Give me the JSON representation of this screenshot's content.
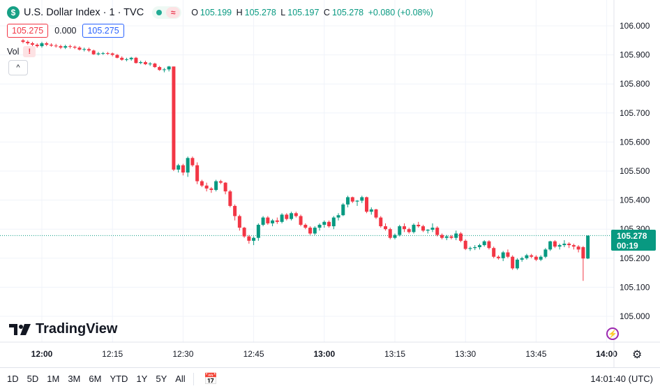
{
  "header": {
    "symbol_icon": "$",
    "title": "U.S. Dollar Index · 1 · TVC",
    "delay_icon": "≈",
    "ohlc": {
      "o_label": "O",
      "o": "105.199",
      "h_label": "H",
      "h": "105.278",
      "l_label": "L",
      "l": "105.197",
      "c_label": "C",
      "c": "105.278",
      "change": "+0.080 (+0.08%)"
    }
  },
  "quote": {
    "bid": "105.275",
    "spread": "0.000",
    "ask": "105.275"
  },
  "volume": {
    "label": "Vol",
    "warn": "!"
  },
  "collapse_icon": "^",
  "logo": "TradingView",
  "price_tag": {
    "price": "105.278",
    "countdown": "00:19"
  },
  "bottom": {
    "ranges": [
      "1D",
      "5D",
      "1M",
      "3M",
      "6M",
      "YTD",
      "1Y",
      "5Y",
      "All"
    ],
    "clock": "14:01:40 (UTC)"
  },
  "colors": {
    "up": "#089981",
    "down": "#f23645",
    "grid": "#f0f3fa"
  },
  "chart_data": {
    "type": "candlestick",
    "y_ticks": [
      "106.000",
      "105.900",
      "105.800",
      "105.700",
      "105.600",
      "105.500",
      "105.400",
      "105.300",
      "105.200",
      "105.100",
      "105.000"
    ],
    "ylim": [
      104.97,
      106.04
    ],
    "x_ticks": [
      "12:00",
      "12:15",
      "12:30",
      "12:45",
      "13:00",
      "13:15",
      "13:30",
      "13:45",
      "14:00"
    ],
    "start_minute": 716,
    "candles": [
      [
        105.95,
        105.955,
        105.94,
        105.945
      ],
      [
        105.945,
        105.95,
        105.935,
        105.94
      ],
      [
        105.94,
        105.945,
        105.93,
        105.935
      ],
      [
        105.935,
        105.94,
        105.925,
        105.93
      ],
      [
        105.93,
        105.945,
        105.925,
        105.94
      ],
      [
        105.94,
        105.945,
        105.93,
        105.935
      ],
      [
        105.935,
        105.94,
        105.928,
        105.932
      ],
      [
        105.932,
        105.938,
        105.925,
        105.93
      ],
      [
        105.93,
        105.935,
        105.92,
        105.925
      ],
      [
        105.925,
        105.935,
        105.92,
        105.93
      ],
      [
        105.93,
        105.935,
        105.922,
        105.928
      ],
      [
        105.928,
        105.932,
        105.92,
        105.925
      ],
      [
        105.925,
        105.93,
        105.915,
        105.918
      ],
      [
        105.918,
        105.925,
        105.912,
        105.92
      ],
      [
        105.92,
        105.925,
        105.91,
        105.915
      ],
      [
        105.915,
        105.918,
        105.9,
        105.902
      ],
      [
        105.902,
        105.91,
        105.898,
        105.905
      ],
      [
        105.905,
        105.91,
        105.9,
        105.906
      ],
      [
        105.906,
        105.91,
        105.9,
        105.905
      ],
      [
        105.905,
        105.908,
        105.895,
        105.9
      ],
      [
        105.9,
        105.903,
        105.888,
        105.89
      ],
      [
        105.89,
        105.895,
        105.88,
        105.883
      ],
      [
        105.883,
        105.89,
        105.878,
        105.885
      ],
      [
        105.885,
        105.893,
        105.88,
        105.89
      ],
      [
        105.89,
        105.893,
        105.87,
        105.872
      ],
      [
        105.872,
        105.88,
        105.868,
        105.875
      ],
      [
        105.875,
        105.88,
        105.865,
        105.868
      ],
      [
        105.868,
        105.875,
        105.862,
        105.87
      ],
      [
        105.87,
        105.873,
        105.855,
        105.858
      ],
      [
        105.858,
        105.862,
        105.845,
        105.848
      ],
      [
        105.848,
        105.855,
        105.84,
        105.85
      ],
      [
        105.85,
        105.862,
        105.843,
        105.86
      ],
      [
        105.86,
        105.86,
        105.5,
        105.505
      ],
      [
        105.505,
        105.525,
        105.495,
        105.52
      ],
      [
        105.52,
        105.525,
        105.485,
        105.495
      ],
      [
        105.495,
        105.55,
        105.48,
        105.545
      ],
      [
        105.545,
        105.55,
        105.515,
        105.52
      ],
      [
        105.52,
        105.53,
        105.455,
        105.465
      ],
      [
        105.465,
        105.47,
        105.445,
        105.45
      ],
      [
        105.45,
        105.46,
        105.43,
        105.44
      ],
      [
        105.44,
        105.445,
        105.425,
        105.435
      ],
      [
        105.435,
        105.47,
        105.43,
        105.465
      ],
      [
        105.465,
        105.47,
        105.455,
        105.46
      ],
      [
        105.46,
        105.462,
        105.42,
        105.43
      ],
      [
        105.43,
        105.435,
        105.375,
        105.38
      ],
      [
        105.38,
        105.385,
        105.33,
        105.345
      ],
      [
        105.345,
        105.35,
        105.295,
        105.305
      ],
      [
        105.305,
        105.308,
        105.27,
        105.275
      ],
      [
        105.275,
        105.28,
        105.25,
        105.26
      ],
      [
        105.26,
        105.275,
        105.245,
        105.27
      ],
      [
        105.27,
        105.32,
        105.26,
        105.315
      ],
      [
        105.315,
        105.345,
        105.31,
        105.34
      ],
      [
        105.34,
        105.345,
        105.315,
        105.32
      ],
      [
        105.32,
        105.335,
        105.31,
        105.33
      ],
      [
        105.33,
        105.34,
        105.318,
        105.325
      ],
      [
        105.325,
        105.355,
        105.32,
        105.35
      ],
      [
        105.35,
        105.355,
        105.33,
        105.335
      ],
      [
        105.335,
        105.36,
        105.33,
        105.355
      ],
      [
        105.355,
        105.36,
        105.34,
        105.345
      ],
      [
        105.345,
        105.35,
        105.31,
        105.315
      ],
      [
        105.315,
        105.32,
        105.3,
        105.305
      ],
      [
        105.305,
        105.31,
        105.28,
        105.285
      ],
      [
        105.285,
        105.31,
        105.28,
        105.305
      ],
      [
        105.305,
        105.32,
        105.295,
        105.315
      ],
      [
        105.315,
        105.33,
        105.305,
        105.325
      ],
      [
        105.325,
        105.33,
        105.305,
        105.31
      ],
      [
        105.31,
        105.345,
        105.3,
        105.34
      ],
      [
        105.34,
        105.355,
        105.33,
        105.348
      ],
      [
        105.348,
        105.39,
        105.345,
        105.385
      ],
      [
        105.385,
        105.415,
        105.375,
        105.41
      ],
      [
        105.41,
        105.412,
        105.39,
        105.395
      ],
      [
        105.395,
        105.4,
        105.38,
        105.398
      ],
      [
        105.398,
        105.415,
        105.39,
        105.41
      ],
      [
        105.41,
        105.412,
        105.355,
        105.36
      ],
      [
        105.36,
        105.375,
        105.35,
        105.368
      ],
      [
        105.368,
        105.37,
        105.335,
        105.34
      ],
      [
        105.34,
        105.345,
        105.305,
        105.31
      ],
      [
        105.31,
        105.32,
        105.295,
        105.3
      ],
      [
        105.3,
        105.305,
        105.265,
        105.27
      ],
      [
        105.27,
        105.285,
        105.265,
        105.28
      ],
      [
        105.28,
        105.315,
        105.275,
        105.31
      ],
      [
        105.31,
        105.32,
        105.29,
        105.3
      ],
      [
        105.3,
        105.305,
        105.285,
        105.29
      ],
      [
        105.29,
        105.32,
        105.285,
        105.315
      ],
      [
        105.315,
        105.325,
        105.305,
        105.31
      ],
      [
        105.31,
        105.315,
        105.29,
        105.295
      ],
      [
        105.295,
        105.3,
        105.285,
        105.298
      ],
      [
        105.298,
        105.32,
        105.29,
        105.305
      ],
      [
        105.305,
        105.31,
        105.275,
        105.28
      ],
      [
        105.28,
        105.285,
        105.265,
        105.27
      ],
      [
        105.27,
        105.28,
        105.262,
        105.275
      ],
      [
        105.275,
        105.28,
        105.265,
        105.27
      ],
      [
        105.27,
        105.295,
        105.262,
        105.285
      ],
      [
        105.285,
        105.29,
        105.255,
        105.26
      ],
      [
        105.26,
        105.265,
        105.228,
        105.232
      ],
      [
        105.232,
        105.24,
        105.225,
        105.235
      ],
      [
        105.235,
        105.245,
        105.228,
        105.238
      ],
      [
        105.238,
        105.25,
        105.23,
        105.245
      ],
      [
        105.245,
        105.262,
        105.24,
        105.258
      ],
      [
        105.258,
        105.262,
        105.23,
        105.235
      ],
      [
        105.235,
        105.24,
        105.2,
        105.205
      ],
      [
        105.205,
        105.21,
        105.195,
        105.2
      ],
      [
        105.2,
        105.225,
        105.19,
        105.22
      ],
      [
        105.22,
        105.23,
        105.2,
        105.205
      ],
      [
        105.205,
        105.21,
        105.16,
        105.165
      ],
      [
        105.165,
        105.2,
        105.16,
        105.195
      ],
      [
        105.195,
        105.205,
        105.188,
        105.2
      ],
      [
        105.2,
        105.215,
        105.195,
        105.21
      ],
      [
        105.21,
        105.215,
        105.2,
        105.205
      ],
      [
        105.205,
        105.21,
        105.19,
        105.195
      ],
      [
        105.195,
        105.21,
        105.19,
        105.205
      ],
      [
        105.205,
        105.235,
        105.2,
        105.23
      ],
      [
        105.23,
        105.26,
        105.225,
        105.258
      ],
      [
        105.258,
        105.262,
        105.235,
        105.24
      ],
      [
        105.24,
        105.25,
        105.23,
        105.245
      ],
      [
        105.245,
        105.262,
        105.238,
        105.25
      ],
      [
        105.25,
        105.255,
        105.235,
        105.245
      ],
      [
        105.245,
        105.25,
        105.23,
        105.24
      ],
      [
        105.24,
        105.245,
        105.22,
        105.23
      ],
      [
        105.238,
        105.242,
        105.122,
        105.199
      ],
      [
        105.199,
        105.278,
        105.197,
        105.278
      ]
    ],
    "last_price": 105.278
  }
}
